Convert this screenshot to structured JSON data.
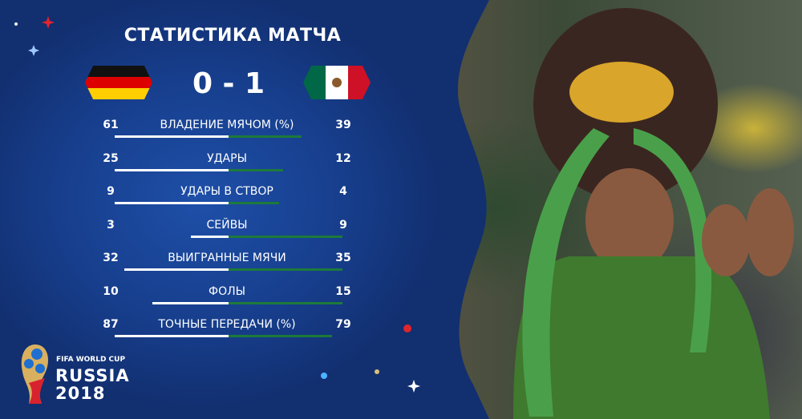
{
  "title": "СТАТИСТИКА МАТЧА",
  "score": "0 - 1",
  "teams": {
    "home": {
      "flag": "germany-flag"
    },
    "away": {
      "flag": "mexico-flag"
    }
  },
  "colors": {
    "panel": "#173e8c",
    "home_bar": "#ffffff",
    "away_bar": "#1d7a3a"
  },
  "stats": [
    {
      "label": "ВЛАДЕНИЕ МЯЧОМ (%)",
      "home": "61",
      "away": "39"
    },
    {
      "label": "УДАРЫ",
      "home": "25",
      "away": "12"
    },
    {
      "label": "УДАРЫ В СТВОР",
      "home": "9",
      "away": "4"
    },
    {
      "label": "СЕЙВЫ",
      "home": "3",
      "away": "9"
    },
    {
      "label": "ВЫИГРАННЫЕ МЯЧИ",
      "home": "32",
      "away": "35"
    },
    {
      "label": "ФОЛЫ",
      "home": "10",
      "away": "15"
    },
    {
      "label": "ТОЧНЫЕ ПЕРЕДАЧИ (%)",
      "home": "87",
      "away": "79"
    }
  ],
  "logo": {
    "line1": "FIFA WORLD CUP",
    "line2": "RUSSIA",
    "line3": "2018"
  }
}
